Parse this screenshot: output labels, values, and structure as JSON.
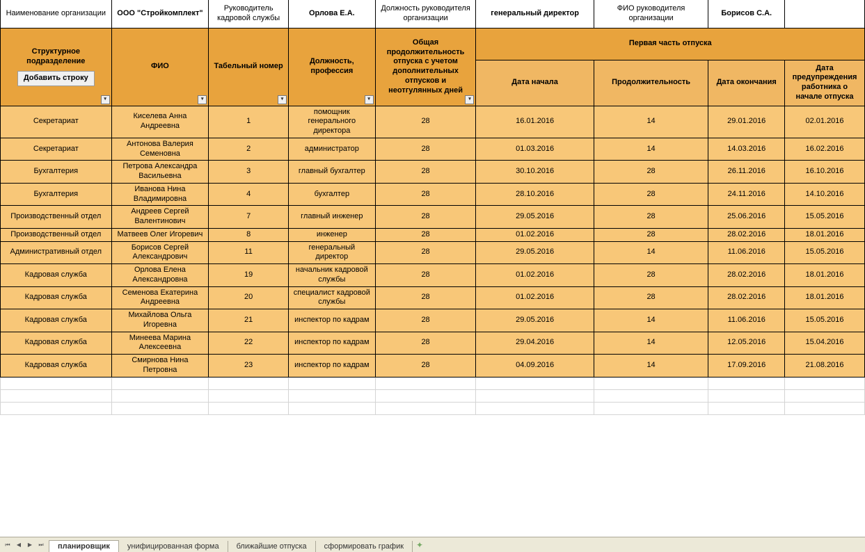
{
  "colors": {
    "header_bg": "#e8a33d",
    "header_light": "#f0b763",
    "row_bg": "#f8c778",
    "border": "#000000",
    "tabbar_bg": "#ece9d8"
  },
  "meta": {
    "org_name_label": "Наименование организации",
    "org_name_value": "ООО \"Стройкомплект\"",
    "hr_head_label": "Руководитель кадровой службы",
    "hr_head_value": "Орлова Е.А.",
    "org_head_pos_label": "Должность руководителя организации",
    "org_head_pos_value": "генеральный директор",
    "org_head_name_label": "ФИО руководителя организации",
    "org_head_name_value": "Борисов С.А."
  },
  "headers": {
    "dept": "Структурное подразделение",
    "fio": "ФИО",
    "tab_num": "Табельный номер",
    "position": "Должность, профессия",
    "total_days": "Общая продолжительность отпуска с учетом дополнительных отпусков и неотгулянных дней",
    "first_part": "Первая часть отпуска",
    "start_date": "Дата начала",
    "duration": "Продолжительность",
    "end_date": "Дата окончания",
    "notify_date": "Дата предупреждения работника о начале отпуска",
    "add_row_btn": "Добавить строку"
  },
  "rows": [
    {
      "dept": "Секретариат",
      "fio": "Киселева Анна Андреевна",
      "num": "1",
      "pos": "помощник генерального директора",
      "total": "28",
      "start": "16.01.2016",
      "dur": "14",
      "end": "29.01.2016",
      "notify": "02.01.2016"
    },
    {
      "dept": "Секретариат",
      "fio": "Антонова Валерия Семеновна",
      "num": "2",
      "pos": "администратор",
      "total": "28",
      "start": "01.03.2016",
      "dur": "14",
      "end": "14.03.2016",
      "notify": "16.02.2016"
    },
    {
      "dept": "Бухгалтерия",
      "fio": "Петрова Александра Васильевна",
      "num": "3",
      "pos": "главный бухгалтер",
      "total": "28",
      "start": "30.10.2016",
      "dur": "28",
      "end": "26.11.2016",
      "notify": "16.10.2016"
    },
    {
      "dept": "Бухгалтерия",
      "fio": "Иванова Нина Владимировна",
      "num": "4",
      "pos": "бухгалтер",
      "total": "28",
      "start": "28.10.2016",
      "dur": "28",
      "end": "24.11.2016",
      "notify": "14.10.2016"
    },
    {
      "dept": "Производственный отдел",
      "fio": "Андреев Сергей Валентинович",
      "num": "7",
      "pos": "главный инженер",
      "total": "28",
      "start": "29.05.2016",
      "dur": "28",
      "end": "25.06.2016",
      "notify": "15.05.2016"
    },
    {
      "dept": "Производственный отдел",
      "fio": "Матвеев Олег Игоревич",
      "num": "8",
      "pos": "инженер",
      "total": "28",
      "start": "01.02.2016",
      "dur": "28",
      "end": "28.02.2016",
      "notify": "18.01.2016"
    },
    {
      "dept": "Административный отдел",
      "fio": "Борисов Сергей Александрович",
      "num": "11",
      "pos": "генеральный директор",
      "total": "28",
      "start": "29.05.2016",
      "dur": "14",
      "end": "11.06.2016",
      "notify": "15.05.2016"
    },
    {
      "dept": "Кадровая служба",
      "fio": "Орлова Елена Александровна",
      "num": "19",
      "pos": "начальник кадровой службы",
      "total": "28",
      "start": "01.02.2016",
      "dur": "28",
      "end": "28.02.2016",
      "notify": "18.01.2016"
    },
    {
      "dept": "Кадровая служба",
      "fio": "Семенова Екатерина Андреевна",
      "num": "20",
      "pos": "специалист кадровой службы",
      "total": "28",
      "start": "01.02.2016",
      "dur": "28",
      "end": "28.02.2016",
      "notify": "18.01.2016"
    },
    {
      "dept": "Кадровая служба",
      "fio": "Михайлова Ольга Игоревна",
      "num": "21",
      "pos": "инспектор по кадрам",
      "total": "28",
      "start": "29.05.2016",
      "dur": "14",
      "end": "11.06.2016",
      "notify": "15.05.2016"
    },
    {
      "dept": "Кадровая служба",
      "fio": "Минеева Марина Алексеевна",
      "num": "22",
      "pos": "инспектор по кадрам",
      "total": "28",
      "start": "29.04.2016",
      "dur": "14",
      "end": "12.05.2016",
      "notify": "15.04.2016"
    },
    {
      "dept": "Кадровая служба",
      "fio": "Смирнова Нина Петровна",
      "num": "23",
      "pos": "инспектор по кадрам",
      "total": "28",
      "start": "04.09.2016",
      "dur": "14",
      "end": "17.09.2016",
      "notify": "21.08.2016"
    }
  ],
  "tabs": {
    "items": [
      "планировщик",
      "унифицированная форма",
      "ближайшие отпуска",
      "сформировать график"
    ],
    "active_index": 0
  }
}
